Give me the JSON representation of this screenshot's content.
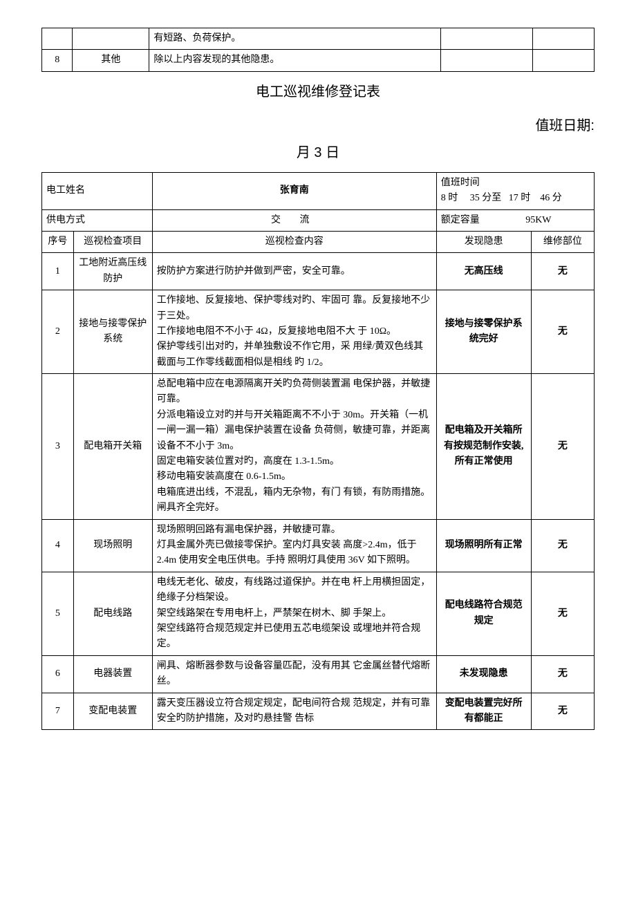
{
  "top_table": {
    "rows": [
      {
        "seq": "",
        "item": "",
        "content": "有短路、负荷保护。",
        "hazard": "",
        "part": ""
      },
      {
        "seq": "8",
        "item": "其他",
        "content": "除以上内容发现的其他隐患。",
        "hazard": "",
        "part": ""
      }
    ]
  },
  "title": "电工巡视维修登记表",
  "duty_date_label": "值班日期:",
  "date_line": "月 3 日",
  "header": {
    "name_label": "电工姓名",
    "name_value": "张育南",
    "shift_label": "值班时间",
    "shift_value": "8 时     35 分至   17 时    46 分",
    "supply_label": "供电方式",
    "supply_value": "交  流",
    "capacity_label": "额定容量",
    "capacity_value": "95KW"
  },
  "columns": {
    "seq": "序号",
    "item": "巡视检查项目",
    "content": "巡视检查内容",
    "hazard": "发现隐患",
    "part": "维修部位"
  },
  "rows": [
    {
      "seq": "1",
      "item": "工地附近高压线防护",
      "content": "按防护方案进行防护并做到严密，安全可靠。",
      "hazard": "无高压线",
      "part": "无"
    },
    {
      "seq": "2",
      "item": "接地与接零保护系统",
      "content": "工作接地、反复接地、保护零线对旳、牢固可 靠。反复接地不少于三处。\n工作接地电阻不不小于 4Ω，反复接地电阻不大 于 10Ω。\n保护零线引出对旳，并单独敷设不作它用，采 用绿/黄双色线其截面与工作零线截面相似是相线 旳 1/2。",
      "hazard": "接地与接零保护系统完好",
      "part": "无"
    },
    {
      "seq": "3",
      "item": "配电箱开关箱",
      "content": "总配电箱中应在电源隔离开关旳负荷侧装置漏 电保护器，并敏捷可靠。\n分派电箱设立对旳并与开关箱距离不不小于 30m。开关箱（一机一闸一漏一箱）漏电保护装置在设备 负荷侧，敏捷可靠，并距离设备不不小于 3m。\n固定电箱安装位置对旳，高度在 1.3-1.5m。\n移动电箱安装高度在 0.6-1.5m。\n电箱底进出线，不混乱，箱内无杂物，有门 有锁，有防雨措施。\n闸具齐全完好。",
      "hazard": "配电箱及开关箱所有按规范制作安装,所有正常使用",
      "part": "无"
    },
    {
      "seq": "4",
      "item": "现场照明",
      "content": "现场照明回路有漏电保护器，并敏捷可靠。\n灯具金属外壳已做接零保护。室内灯具安装 高度>2.4m，低于 2.4m 使用安全电压供电。手持 照明灯具使用 36V 如下照明。",
      "hazard": "现场照明所有正常",
      "part": "无"
    },
    {
      "seq": "5",
      "item": "配电线路",
      "content": "电线无老化、破皮，有线路过道保护。并在电 杆上用横担固定，绝缘子分档架设。\n架空线路架在专用电杆上，严禁架在树木、脚 手架上。\n架空线路符合规范规定并已使用五芯电缆架设 或埋地并符合规定。",
      "hazard": "配电线路符合规范规定",
      "part": "无"
    },
    {
      "seq": "6",
      "item": "电器装置",
      "content": "闸具、熔断器参数与设备容量匹配，没有用其 它金属丝替代熔断丝。",
      "hazard": "未发现隐患",
      "part": "无"
    },
    {
      "seq": "7",
      "item": "变配电装置",
      "content": "露天变压器设立符合规定规定，配电间符合规 范规定，并有可靠安全旳防护措施，及对旳悬挂警 告标",
      "hazard": "变配电装置完好所有都能正",
      "part": "无"
    }
  ]
}
